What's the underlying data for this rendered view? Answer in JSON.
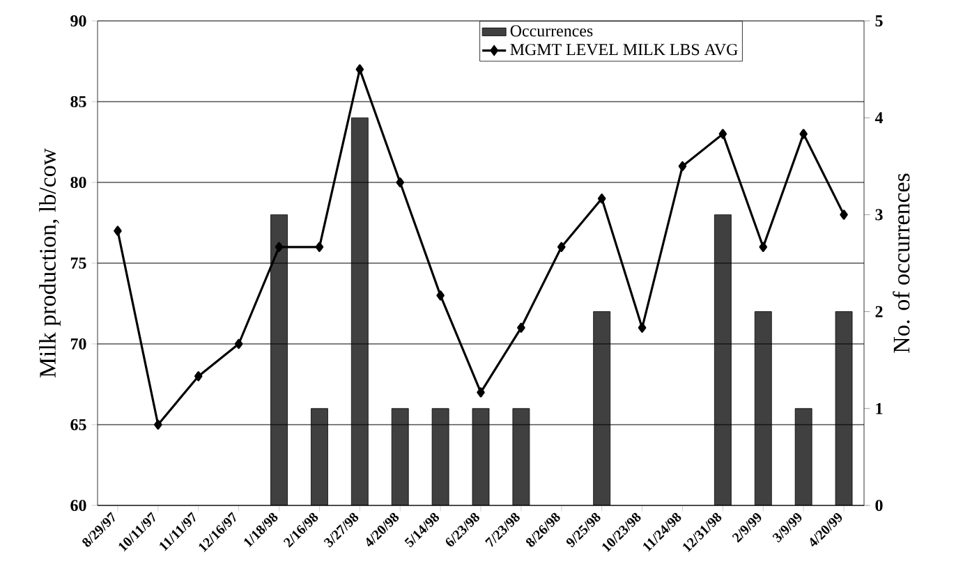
{
  "chart_data": {
    "type": "bar",
    "ylabel": "Milk production, lb/cow",
    "y2label": "No. of occurrences",
    "categories": [
      "8/29/97",
      "10/11/97",
      "11/11/97",
      "12/16/97",
      "1/18/98",
      "2/16/98",
      "3/27/98",
      "4/20/98",
      "5/14/98",
      "6/23/98",
      "7/23/98",
      "8/26/98",
      "9/25/98",
      "10/23/98",
      "11/24/98",
      "12/31/98",
      "2/9/99",
      "3/9/99",
      "4/20/99"
    ],
    "series": [
      {
        "name": "Occurrences",
        "axis": "y2",
        "color": "#404040",
        "values": [
          null,
          null,
          null,
          null,
          3,
          1,
          4,
          1,
          1,
          1,
          1,
          null,
          2,
          null,
          null,
          3,
          2,
          1,
          2
        ]
      },
      {
        "name": "MGMT LEVEL MILK LBS AVG",
        "type": "line",
        "color": "#000000",
        "values": [
          77,
          65,
          68,
          70,
          76,
          76,
          87,
          80,
          73,
          67,
          71,
          76,
          79,
          71,
          81,
          83,
          76,
          83,
          78
        ]
      }
    ],
    "ylim": [
      60,
      90
    ],
    "yticks": [
      60,
      65,
      70,
      75,
      80,
      85,
      90
    ],
    "y2lim": [
      0,
      5
    ],
    "y2ticks": [
      0,
      1,
      2,
      3,
      4,
      5
    ],
    "grid": "y",
    "legend": "top",
    "marker": "diamond"
  }
}
